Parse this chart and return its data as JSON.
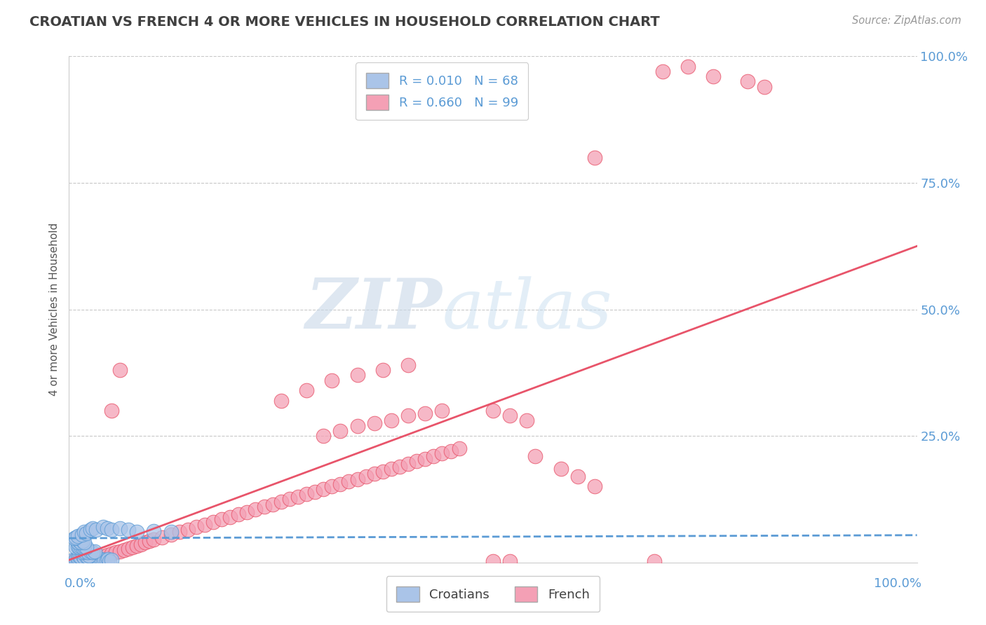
{
  "title": "CROATIAN VS FRENCH 4 OR MORE VEHICLES IN HOUSEHOLD CORRELATION CHART",
  "source": "Source: ZipAtlas.com",
  "ylabel": "4 or more Vehicles in Household",
  "ylim": [
    0.0,
    1.0
  ],
  "xlim": [
    0.0,
    1.0
  ],
  "watermark_zip": "ZIP",
  "watermark_atlas": "atlas",
  "croatian_R": "R = 0.010",
  "croatian_N": "N = 68",
  "french_R": "R = 0.660",
  "french_N": "N = 99",
  "croatian_color": "#aac4e8",
  "french_color": "#f4a0b5",
  "croatian_line_color": "#5b9bd5",
  "french_line_color": "#e8546a",
  "grid_color": "#c8c8c8",
  "title_color": "#404040",
  "label_color": "#5b9bd5",
  "background_color": "#ffffff",
  "croatian_line_slope": 0.006,
  "croatian_line_intercept": 0.048,
  "french_line_slope": 0.62,
  "french_line_intercept": 0.005,
  "croatian_scatter": [
    [
      0.005,
      0.005
    ],
    [
      0.007,
      0.003
    ],
    [
      0.008,
      0.007
    ],
    [
      0.01,
      0.004
    ],
    [
      0.012,
      0.006
    ],
    [
      0.014,
      0.004
    ],
    [
      0.015,
      0.008
    ],
    [
      0.018,
      0.005
    ],
    [
      0.02,
      0.004
    ],
    [
      0.022,
      0.006
    ],
    [
      0.024,
      0.003
    ],
    [
      0.026,
      0.005
    ],
    [
      0.028,
      0.004
    ],
    [
      0.03,
      0.006
    ],
    [
      0.032,
      0.003
    ],
    [
      0.034,
      0.005
    ],
    [
      0.036,
      0.004
    ],
    [
      0.038,
      0.006
    ],
    [
      0.04,
      0.003
    ],
    [
      0.042,
      0.005
    ],
    [
      0.044,
      0.004
    ],
    [
      0.046,
      0.006
    ],
    [
      0.048,
      0.003
    ],
    [
      0.05,
      0.005
    ],
    [
      0.01,
      0.01
    ],
    [
      0.012,
      0.012
    ],
    [
      0.014,
      0.011
    ],
    [
      0.016,
      0.013
    ],
    [
      0.018,
      0.01
    ],
    [
      0.02,
      0.012
    ],
    [
      0.022,
      0.011
    ],
    [
      0.024,
      0.013
    ],
    [
      0.015,
      0.02
    ],
    [
      0.018,
      0.022
    ],
    [
      0.02,
      0.024
    ],
    [
      0.022,
      0.02
    ],
    [
      0.025,
      0.022
    ],
    [
      0.028,
      0.02
    ],
    [
      0.03,
      0.022
    ],
    [
      0.008,
      0.03
    ],
    [
      0.01,
      0.032
    ],
    [
      0.012,
      0.03
    ],
    [
      0.014,
      0.032
    ],
    [
      0.016,
      0.03
    ],
    [
      0.018,
      0.032
    ],
    [
      0.02,
      0.03
    ],
    [
      0.01,
      0.04
    ],
    [
      0.012,
      0.042
    ],
    [
      0.014,
      0.04
    ],
    [
      0.016,
      0.042
    ],
    [
      0.018,
      0.04
    ],
    [
      0.006,
      0.048
    ],
    [
      0.008,
      0.05
    ],
    [
      0.01,
      0.052
    ],
    [
      0.015,
      0.055
    ],
    [
      0.018,
      0.06
    ],
    [
      0.02,
      0.058
    ],
    [
      0.025,
      0.065
    ],
    [
      0.028,
      0.068
    ],
    [
      0.032,
      0.065
    ],
    [
      0.04,
      0.07
    ],
    [
      0.045,
      0.068
    ],
    [
      0.05,
      0.065
    ],
    [
      0.06,
      0.068
    ],
    [
      0.07,
      0.065
    ],
    [
      0.08,
      0.06
    ],
    [
      0.1,
      0.062
    ],
    [
      0.12,
      0.06
    ]
  ],
  "french_scatter": [
    [
      0.005,
      0.003
    ],
    [
      0.008,
      0.005
    ],
    [
      0.01,
      0.004
    ],
    [
      0.012,
      0.006
    ],
    [
      0.015,
      0.005
    ],
    [
      0.018,
      0.007
    ],
    [
      0.02,
      0.006
    ],
    [
      0.022,
      0.008
    ],
    [
      0.025,
      0.006
    ],
    [
      0.028,
      0.008
    ],
    [
      0.03,
      0.007
    ],
    [
      0.035,
      0.01
    ],
    [
      0.04,
      0.012
    ],
    [
      0.045,
      0.015
    ],
    [
      0.05,
      0.018
    ],
    [
      0.055,
      0.02
    ],
    [
      0.06,
      0.022
    ],
    [
      0.065,
      0.025
    ],
    [
      0.07,
      0.028
    ],
    [
      0.075,
      0.03
    ],
    [
      0.08,
      0.033
    ],
    [
      0.085,
      0.036
    ],
    [
      0.09,
      0.04
    ],
    [
      0.095,
      0.042
    ],
    [
      0.1,
      0.045
    ],
    [
      0.11,
      0.05
    ],
    [
      0.12,
      0.055
    ],
    [
      0.13,
      0.06
    ],
    [
      0.14,
      0.065
    ],
    [
      0.15,
      0.07
    ],
    [
      0.16,
      0.075
    ],
    [
      0.17,
      0.08
    ],
    [
      0.18,
      0.085
    ],
    [
      0.19,
      0.09
    ],
    [
      0.2,
      0.095
    ],
    [
      0.21,
      0.1
    ],
    [
      0.22,
      0.105
    ],
    [
      0.23,
      0.11
    ],
    [
      0.24,
      0.115
    ],
    [
      0.25,
      0.12
    ],
    [
      0.26,
      0.125
    ],
    [
      0.27,
      0.13
    ],
    [
      0.28,
      0.135
    ],
    [
      0.29,
      0.14
    ],
    [
      0.3,
      0.145
    ],
    [
      0.31,
      0.15
    ],
    [
      0.32,
      0.155
    ],
    [
      0.33,
      0.16
    ],
    [
      0.34,
      0.165
    ],
    [
      0.35,
      0.17
    ],
    [
      0.36,
      0.175
    ],
    [
      0.37,
      0.18
    ],
    [
      0.38,
      0.185
    ],
    [
      0.39,
      0.19
    ],
    [
      0.4,
      0.195
    ],
    [
      0.41,
      0.2
    ],
    [
      0.42,
      0.205
    ],
    [
      0.43,
      0.21
    ],
    [
      0.44,
      0.215
    ],
    [
      0.45,
      0.22
    ],
    [
      0.46,
      0.225
    ],
    [
      0.3,
      0.25
    ],
    [
      0.32,
      0.26
    ],
    [
      0.34,
      0.27
    ],
    [
      0.36,
      0.275
    ],
    [
      0.38,
      0.28
    ],
    [
      0.4,
      0.29
    ],
    [
      0.42,
      0.295
    ],
    [
      0.44,
      0.3
    ],
    [
      0.25,
      0.32
    ],
    [
      0.28,
      0.34
    ],
    [
      0.31,
      0.36
    ],
    [
      0.34,
      0.37
    ],
    [
      0.37,
      0.38
    ],
    [
      0.4,
      0.39
    ],
    [
      0.06,
      0.38
    ],
    [
      0.05,
      0.3
    ],
    [
      0.5,
      0.3
    ],
    [
      0.52,
      0.29
    ],
    [
      0.54,
      0.28
    ],
    [
      0.55,
      0.21
    ],
    [
      0.58,
      0.185
    ],
    [
      0.6,
      0.17
    ],
    [
      0.62,
      0.15
    ],
    [
      0.62,
      0.8
    ],
    [
      0.5,
      0.003
    ],
    [
      0.52,
      0.003
    ],
    [
      0.69,
      0.003
    ],
    [
      0.7,
      0.97
    ],
    [
      0.73,
      0.98
    ],
    [
      0.76,
      0.96
    ],
    [
      0.8,
      0.95
    ],
    [
      0.82,
      0.94
    ]
  ]
}
